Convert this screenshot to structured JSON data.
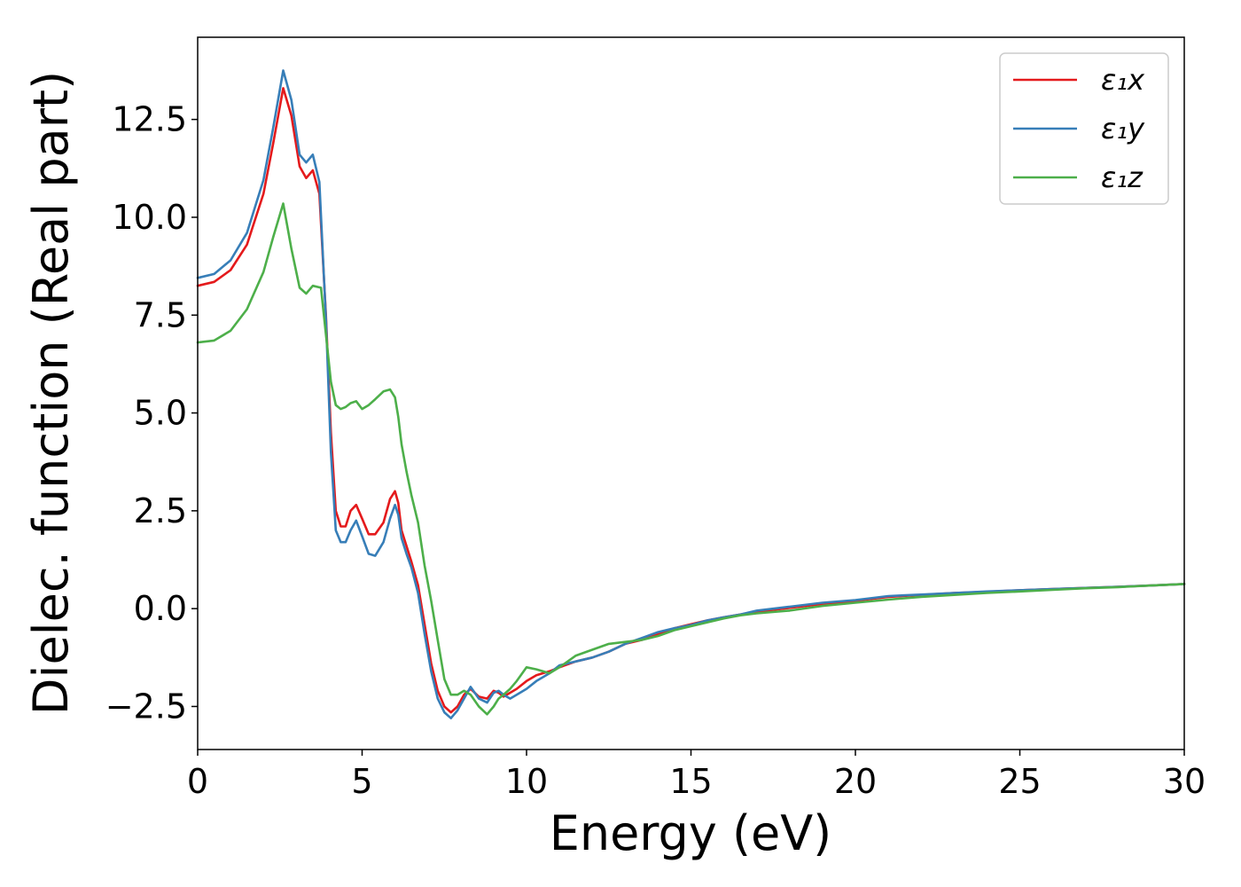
{
  "chart_data": {
    "type": "line",
    "title": "",
    "xlabel": "Energy (eV)",
    "ylabel": "Dielec. function (Real part)",
    "xlim": [
      0,
      30
    ],
    "ylim": [
      -3.6,
      14.6
    ],
    "xticks": [
      0,
      5,
      10,
      15,
      20,
      25,
      30
    ],
    "xtick_labels": [
      "0",
      "5",
      "10",
      "15",
      "20",
      "25",
      "30"
    ],
    "yticks": [
      -2.5,
      0.0,
      2.5,
      5.0,
      7.5,
      10.0,
      12.5
    ],
    "ytick_labels": [
      "−2.5",
      "0.0",
      "2.5",
      "5.0",
      "7.5",
      "10.0",
      "12.5"
    ],
    "grid": false,
    "legend_position": "top-right",
    "series": [
      {
        "name": "ε₁x",
        "color": "#e41a1c",
        "x": [
          0,
          0.5,
          1.0,
          1.5,
          2.0,
          2.3,
          2.6,
          2.85,
          3.1,
          3.3,
          3.5,
          3.7,
          3.9,
          4.05,
          4.2,
          4.35,
          4.5,
          4.65,
          4.82,
          5.0,
          5.2,
          5.4,
          5.65,
          5.85,
          6.0,
          6.1,
          6.2,
          6.35,
          6.5,
          6.7,
          6.9,
          7.1,
          7.3,
          7.5,
          7.7,
          7.9,
          8.1,
          8.3,
          8.55,
          8.8,
          9.0,
          9.15,
          9.3,
          9.5,
          9.7,
          10.0,
          10.3,
          10.7,
          11.0,
          11.5,
          12.0,
          12.5,
          13.0,
          13.5,
          14.0,
          14.5,
          15.0,
          15.5,
          16.0,
          16.5,
          17.0,
          18.0,
          19.0,
          20.0,
          21.0,
          22.0,
          23.0,
          24.0,
          25.0,
          26.0,
          27.0,
          28.0,
          29.0,
          30.0
        ],
        "values": [
          8.25,
          8.35,
          8.65,
          9.3,
          10.6,
          11.9,
          13.3,
          12.6,
          11.3,
          11.0,
          11.2,
          10.6,
          7.5,
          4.5,
          2.5,
          2.1,
          2.1,
          2.5,
          2.65,
          2.3,
          1.9,
          1.9,
          2.2,
          2.8,
          3.0,
          2.7,
          2.0,
          1.6,
          1.2,
          0.6,
          -0.4,
          -1.4,
          -2.1,
          -2.5,
          -2.65,
          -2.5,
          -2.2,
          -2.05,
          -2.25,
          -2.3,
          -2.1,
          -2.15,
          -2.25,
          -2.15,
          -2.05,
          -1.85,
          -1.7,
          -1.6,
          -1.5,
          -1.35,
          -1.25,
          -1.1,
          -0.9,
          -0.8,
          -0.65,
          -0.5,
          -0.4,
          -0.3,
          -0.22,
          -0.15,
          -0.08,
          0.02,
          0.12,
          0.2,
          0.3,
          0.35,
          0.4,
          0.43,
          0.47,
          0.5,
          0.53,
          0.56,
          0.59,
          0.63
        ]
      },
      {
        "name": "ε₁y",
        "color": "#377eb8",
        "x": [
          0,
          0.5,
          1.0,
          1.5,
          2.0,
          2.3,
          2.6,
          2.85,
          3.1,
          3.3,
          3.5,
          3.7,
          3.9,
          4.05,
          4.2,
          4.35,
          4.5,
          4.65,
          4.82,
          5.0,
          5.2,
          5.4,
          5.65,
          5.85,
          6.0,
          6.1,
          6.2,
          6.35,
          6.5,
          6.7,
          6.9,
          7.1,
          7.3,
          7.5,
          7.7,
          7.9,
          8.1,
          8.3,
          8.55,
          8.8,
          9.0,
          9.15,
          9.3,
          9.5,
          9.7,
          10.0,
          10.3,
          10.7,
          11.0,
          11.5,
          12.0,
          12.5,
          13.0,
          13.5,
          14.0,
          14.5,
          15.0,
          15.5,
          16.0,
          16.5,
          17.0,
          18.0,
          19.0,
          20.0,
          21.0,
          22.0,
          23.0,
          24.0,
          25.0,
          26.0,
          27.0,
          28.0,
          29.0,
          30.0
        ],
        "values": [
          8.45,
          8.55,
          8.9,
          9.6,
          10.95,
          12.3,
          13.75,
          13.0,
          11.6,
          11.4,
          11.6,
          10.9,
          7.4,
          4.0,
          2.0,
          1.7,
          1.7,
          2.0,
          2.25,
          1.85,
          1.4,
          1.35,
          1.7,
          2.3,
          2.65,
          2.4,
          1.8,
          1.4,
          1.05,
          0.4,
          -0.65,
          -1.6,
          -2.3,
          -2.65,
          -2.8,
          -2.6,
          -2.3,
          -2.0,
          -2.3,
          -2.4,
          -2.15,
          -2.1,
          -2.2,
          -2.3,
          -2.2,
          -2.05,
          -1.85,
          -1.65,
          -1.45,
          -1.35,
          -1.25,
          -1.1,
          -0.9,
          -0.75,
          -0.6,
          -0.5,
          -0.42,
          -0.3,
          -0.22,
          -0.15,
          -0.05,
          0.05,
          0.15,
          0.22,
          0.32,
          0.36,
          0.4,
          0.44,
          0.47,
          0.5,
          0.53,
          0.56,
          0.59,
          0.63
        ]
      },
      {
        "name": "ε₁z",
        "color": "#4daf4a",
        "x": [
          0,
          0.5,
          1.0,
          1.5,
          2.0,
          2.3,
          2.6,
          2.85,
          3.1,
          3.3,
          3.5,
          3.75,
          3.9,
          4.05,
          4.2,
          4.35,
          4.5,
          4.65,
          4.82,
          5.0,
          5.2,
          5.4,
          5.65,
          5.85,
          6.0,
          6.1,
          6.2,
          6.35,
          6.5,
          6.7,
          6.9,
          7.1,
          7.3,
          7.5,
          7.7,
          7.9,
          8.1,
          8.3,
          8.55,
          8.8,
          9.0,
          9.15,
          9.3,
          9.5,
          9.7,
          10.0,
          10.3,
          10.7,
          11.0,
          11.5,
          12.0,
          12.5,
          13.0,
          13.5,
          14.0,
          14.5,
          15.0,
          15.5,
          16.0,
          16.5,
          17.0,
          18.0,
          19.0,
          20.0,
          21.0,
          22.0,
          23.0,
          24.0,
          25.0,
          26.0,
          27.0,
          28.0,
          29.0,
          30.0
        ],
        "values": [
          6.8,
          6.85,
          7.1,
          7.65,
          8.6,
          9.5,
          10.35,
          9.2,
          8.2,
          8.05,
          8.25,
          8.2,
          7.0,
          5.8,
          5.2,
          5.1,
          5.15,
          5.25,
          5.3,
          5.1,
          5.2,
          5.35,
          5.55,
          5.6,
          5.4,
          4.9,
          4.2,
          3.5,
          2.9,
          2.2,
          1.1,
          0.2,
          -0.8,
          -1.8,
          -2.2,
          -2.2,
          -2.1,
          -2.2,
          -2.5,
          -2.7,
          -2.5,
          -2.3,
          -2.2,
          -2.05,
          -1.85,
          -1.5,
          -1.55,
          -1.65,
          -1.5,
          -1.2,
          -1.05,
          -0.9,
          -0.85,
          -0.8,
          -0.7,
          -0.55,
          -0.45,
          -0.35,
          -0.25,
          -0.17,
          -0.12,
          -0.05,
          0.07,
          0.15,
          0.23,
          0.3,
          0.35,
          0.4,
          0.44,
          0.48,
          0.52,
          0.55,
          0.59,
          0.63
        ]
      }
    ]
  }
}
